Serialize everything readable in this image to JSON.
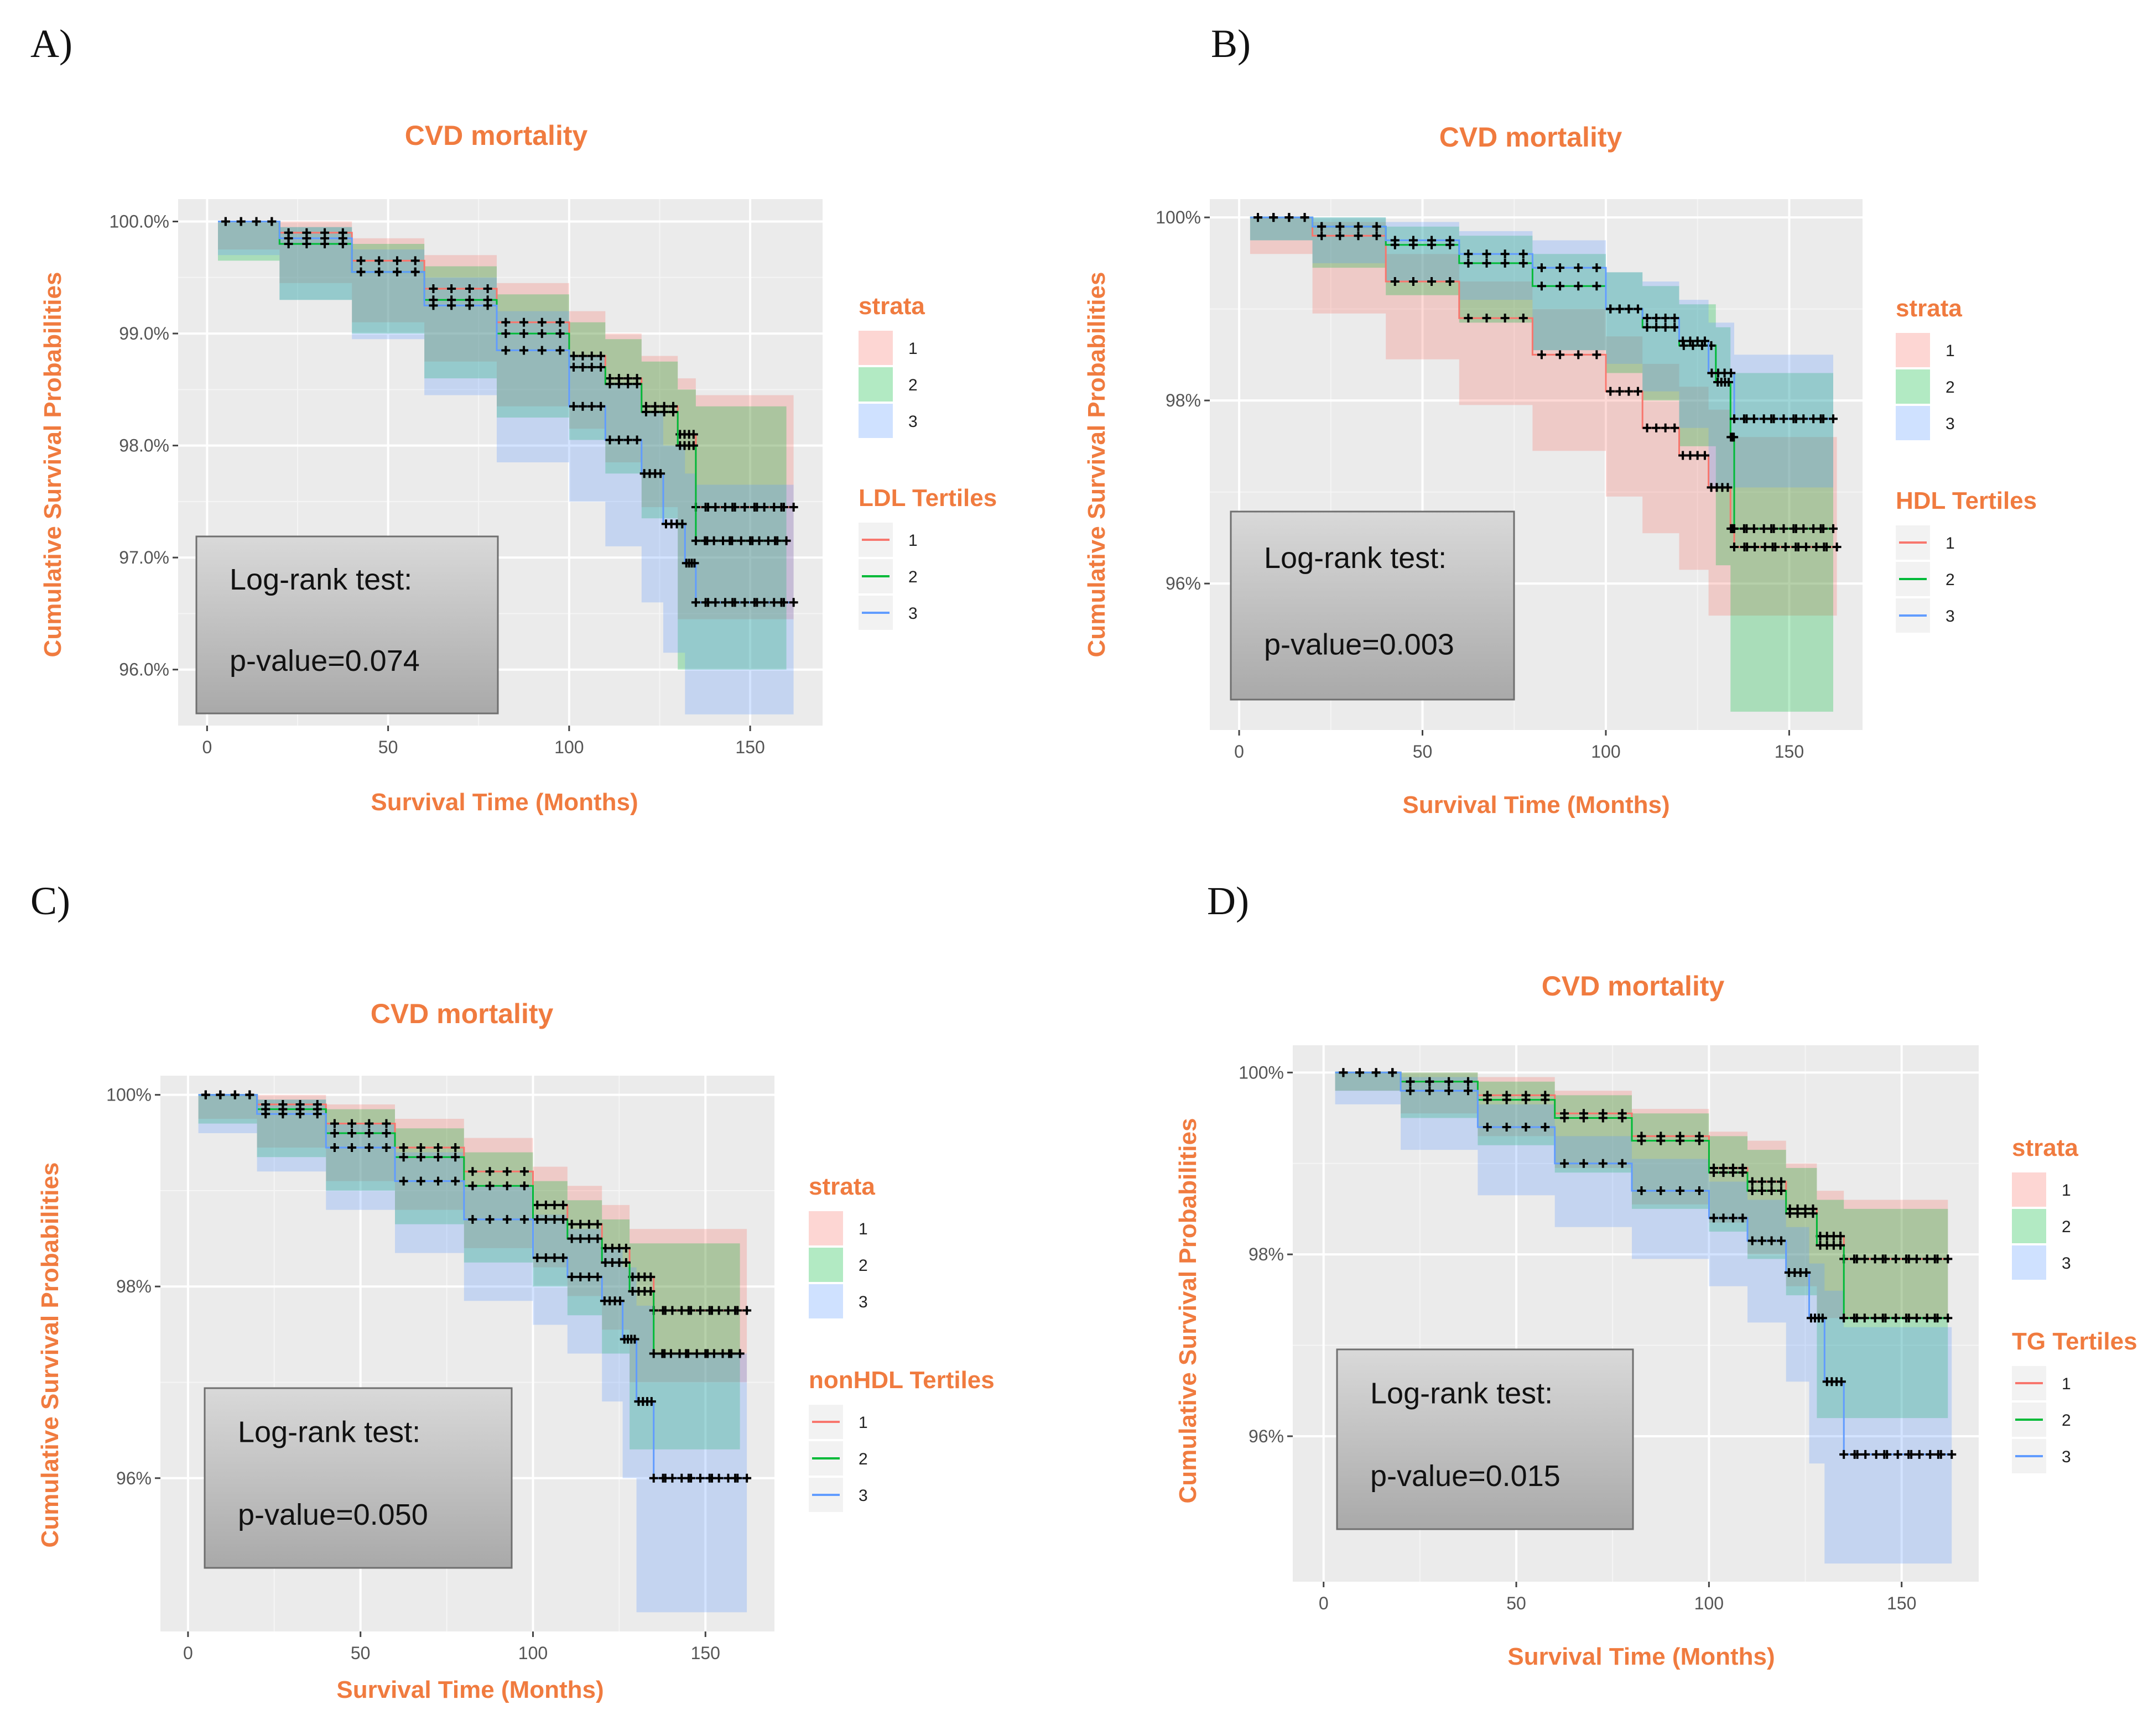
{
  "chart_data": [
    {
      "panel": "A)",
      "type": "line",
      "title": "CVD mortality",
      "xlabel": "Survival Time (Months)",
      "ylabel": "Cumulative Survival Probabilities",
      "xlim": [
        -8,
        170
      ],
      "ylim": [
        95.5,
        100.2
      ],
      "xticks": [
        0,
        50,
        100,
        150
      ],
      "yticks": [
        100,
        99,
        98,
        97,
        96
      ],
      "ytick_labels": [
        "100.0%",
        "99.0%",
        "98.0%",
        "97.0%",
        "96.0%"
      ],
      "grid": true,
      "legend_position": "right",
      "strata_title": "strata",
      "group_title": "LDL Tertiles",
      "legend_labels": [
        "1",
        "2",
        "3"
      ],
      "annotation": {
        "line1": "Log-rank test:",
        "line2": "p-value=0.074"
      },
      "series": [
        {
          "color": "#f8766d",
          "x": [
            3,
            20,
            40,
            60,
            80,
            100,
            110,
            120,
            130,
            135,
            162
          ],
          "y": [
            100,
            99.9,
            99.65,
            99.4,
            99.1,
            98.8,
            98.6,
            98.35,
            98.1,
            97.45,
            97.45
          ],
          "upper": [
            100,
            100,
            99.85,
            99.7,
            99.45,
            99.2,
            99.0,
            98.8,
            98.6,
            98.45,
            98.45
          ],
          "lower": [
            100,
            99.75,
            99.45,
            99.1,
            98.75,
            98.35,
            98.15,
            97.85,
            97.45,
            96.45,
            96.45
          ]
        },
        {
          "color": "#00ba38",
          "x": [
            3,
            20,
            40,
            60,
            80,
            100,
            110,
            120,
            130,
            135,
            160
          ],
          "y": [
            100,
            99.8,
            99.55,
            99.3,
            99.0,
            98.7,
            98.55,
            98.3,
            98.0,
            97.15,
            97.15
          ],
          "upper": [
            100,
            99.95,
            99.8,
            99.6,
            99.35,
            99.1,
            98.95,
            98.75,
            98.5,
            98.35,
            98.35
          ],
          "lower": [
            100,
            99.65,
            99.3,
            99.0,
            98.6,
            98.25,
            98.05,
            97.75,
            97.35,
            96.0,
            96.0
          ]
        },
        {
          "color": "#619cff",
          "x": [
            3,
            20,
            40,
            60,
            80,
            100,
            110,
            120,
            126,
            132,
            135,
            162
          ],
          "y": [
            100,
            99.85,
            99.55,
            99.25,
            98.85,
            98.35,
            98.05,
            97.75,
            97.3,
            96.95,
            96.6,
            96.6
          ],
          "upper": [
            100,
            99.95,
            99.75,
            99.5,
            99.2,
            98.8,
            98.55,
            98.3,
            98.0,
            97.75,
            97.65,
            97.65
          ],
          "lower": [
            100,
            99.7,
            99.3,
            98.95,
            98.45,
            97.85,
            97.5,
            97.1,
            96.6,
            96.15,
            95.6,
            95.6
          ]
        }
      ]
    },
    {
      "panel": "B)",
      "type": "line",
      "title": "CVD mortality",
      "xlabel": "Survival Time (Months)",
      "ylabel": "Cumulative Survival Probabilities",
      "xlim": [
        -8,
        170
      ],
      "ylim": [
        94.4,
        100.2
      ],
      "xticks": [
        0,
        50,
        100,
        150
      ],
      "yticks": [
        100,
        98,
        96
      ],
      "ytick_labels": [
        "100%",
        "98%",
        "96%"
      ],
      "grid": true,
      "legend_position": "right",
      "strata_title": "strata",
      "group_title": "HDL Tertiles",
      "legend_labels": [
        "1",
        "2",
        "3"
      ],
      "annotation": {
        "line1": "Log-rank test:",
        "line2": "p-value=0.003"
      },
      "series": [
        {
          "color": "#f8766d",
          "x": [
            3,
            20,
            40,
            60,
            80,
            100,
            110,
            120,
            128,
            134,
            135,
            163
          ],
          "y": [
            100,
            99.8,
            99.3,
            98.9,
            98.5,
            98.1,
            97.7,
            97.4,
            97.05,
            96.6,
            96.4,
            96.4
          ],
          "upper": [
            100,
            99.95,
            99.6,
            99.3,
            99.0,
            98.7,
            98.4,
            98.15,
            97.9,
            97.6,
            97.6,
            97.6
          ],
          "lower": [
            100,
            99.6,
            98.95,
            98.45,
            97.95,
            97.45,
            96.95,
            96.55,
            96.15,
            95.65,
            95.65,
            95.65
          ]
        },
        {
          "color": "#00ba38",
          "x": [
            3,
            20,
            40,
            60,
            80,
            100,
            110,
            120,
            130,
            134,
            135,
            162
          ],
          "y": [
            100,
            99.9,
            99.7,
            99.5,
            99.25,
            99.0,
            98.8,
            98.6,
            98.2,
            97.6,
            96.6,
            96.6
          ],
          "upper": [
            100,
            100,
            99.9,
            99.8,
            99.6,
            99.4,
            99.25,
            99.05,
            98.8,
            98.3,
            98.3,
            98.3
          ],
          "lower": [
            100,
            99.75,
            99.45,
            99.15,
            98.85,
            98.55,
            98.3,
            98.0,
            97.5,
            96.2,
            94.6,
            94.6
          ]
        },
        {
          "color": "#619cff",
          "x": [
            3,
            20,
            40,
            60,
            80,
            100,
            110,
            120,
            128,
            135,
            162
          ],
          "y": [
            100,
            99.9,
            99.75,
            99.6,
            99.45,
            99.0,
            98.9,
            98.65,
            98.3,
            97.8,
            97.8
          ],
          "upper": [
            100,
            100,
            99.95,
            99.85,
            99.75,
            99.4,
            99.3,
            99.1,
            98.85,
            98.5,
            98.5
          ],
          "lower": [
            100,
            99.75,
            99.5,
            99.3,
            99.1,
            98.55,
            98.4,
            98.1,
            97.7,
            97.05,
            97.05
          ]
        }
      ]
    },
    {
      "panel": "C)",
      "type": "line",
      "title": "CVD mortality",
      "xlabel": "Survival Time (Months)",
      "ylabel": "Cumulative Survival Probabilities",
      "xlim": [
        -8,
        170
      ],
      "ylim": [
        94.4,
        100.2
      ],
      "xticks": [
        0,
        50,
        100,
        150
      ],
      "yticks": [
        100,
        98,
        96
      ],
      "ytick_labels": [
        "100%",
        "98%",
        "96%"
      ],
      "grid": true,
      "legend_position": "right",
      "strata_title": "strata",
      "group_title": "nonHDL Tertiles",
      "legend_labels": [
        "1",
        "2",
        "3"
      ],
      "annotation": {
        "line1": "Log-rank test:",
        "line2": "p-value=0.050"
      },
      "series": [
        {
          "color": "#f8766d",
          "x": [
            3,
            20,
            40,
            60,
            80,
            100,
            110,
            120,
            128,
            135,
            162
          ],
          "y": [
            100,
            99.9,
            99.7,
            99.45,
            99.2,
            98.85,
            98.65,
            98.4,
            98.1,
            97.75,
            97.75
          ],
          "upper": [
            100,
            100,
            99.9,
            99.75,
            99.55,
            99.25,
            99.05,
            98.85,
            98.6,
            98.6,
            98.6
          ],
          "lower": [
            100,
            99.75,
            99.45,
            99.1,
            98.8,
            98.4,
            98.2,
            97.9,
            97.55,
            97.0,
            97.0
          ]
        },
        {
          "color": "#00ba38",
          "x": [
            3,
            20,
            40,
            60,
            80,
            100,
            110,
            120,
            128,
            135,
            160
          ],
          "y": [
            100,
            99.85,
            99.6,
            99.35,
            99.05,
            98.7,
            98.5,
            98.25,
            97.95,
            97.3,
            97.3
          ],
          "upper": [
            100,
            99.95,
            99.85,
            99.65,
            99.4,
            99.1,
            98.9,
            98.7,
            98.45,
            98.45,
            98.45
          ],
          "lower": [
            100,
            99.7,
            99.35,
            99.0,
            98.65,
            98.25,
            98.0,
            97.7,
            97.3,
            96.3,
            96.3
          ]
        },
        {
          "color": "#619cff",
          "x": [
            3,
            20,
            40,
            60,
            80,
            100,
            110,
            120,
            126,
            130,
            135,
            162
          ],
          "y": [
            100,
            99.8,
            99.45,
            99.1,
            98.7,
            98.3,
            98.1,
            97.85,
            97.45,
            96.8,
            96.0,
            96.0
          ],
          "upper": [
            100,
            99.95,
            99.7,
            99.4,
            99.05,
            98.75,
            98.6,
            98.4,
            98.2,
            97.8,
            97.3,
            97.3
          ],
          "lower": [
            100,
            99.6,
            99.2,
            98.8,
            98.35,
            97.85,
            97.6,
            97.3,
            96.8,
            96.0,
            94.6,
            94.6
          ]
        }
      ]
    },
    {
      "panel": "D)",
      "type": "line",
      "title": "CVD mortality",
      "xlabel": "Survival Time (Months)",
      "ylabel": "Cumulative Survival Probabilities",
      "xlim": [
        -8,
        170
      ],
      "ylim": [
        94.4,
        100.3
      ],
      "xticks": [
        0,
        50,
        100,
        150
      ],
      "yticks": [
        100,
        98,
        96
      ],
      "ytick_labels": [
        "100%",
        "98%",
        "96%"
      ],
      "grid": true,
      "legend_position": "right",
      "strata_title": "strata",
      "group_title": "TG Tertiles",
      "legend_labels": [
        "1",
        "2",
        "3"
      ],
      "annotation": {
        "line1": "Log-rank test:",
        "line2": "p-value=0.015"
      },
      "series": [
        {
          "color": "#f8766d",
          "x": [
            3,
            20,
            40,
            60,
            80,
            100,
            110,
            120,
            128,
            135,
            162
          ],
          "y": [
            100,
            99.9,
            99.75,
            99.55,
            99.3,
            98.95,
            98.8,
            98.5,
            98.2,
            97.95,
            97.95
          ],
          "upper": [
            100,
            100,
            99.95,
            99.8,
            99.6,
            99.35,
            99.25,
            99.0,
            98.7,
            98.6,
            98.6
          ],
          "lower": [
            100,
            99.8,
            99.55,
            99.3,
            98.95,
            98.55,
            98.35,
            98.0,
            97.65,
            97.3,
            97.3
          ]
        },
        {
          "color": "#00ba38",
          "x": [
            3,
            20,
            40,
            60,
            80,
            100,
            110,
            120,
            128,
            135,
            162
          ],
          "y": [
            100,
            99.9,
            99.7,
            99.5,
            99.25,
            98.9,
            98.7,
            98.45,
            98.1,
            97.3,
            97.3
          ],
          "upper": [
            100,
            100,
            99.9,
            99.75,
            99.55,
            99.3,
            99.15,
            98.95,
            98.6,
            98.5,
            98.5
          ],
          "lower": [
            100,
            99.8,
            99.5,
            99.2,
            98.9,
            98.5,
            98.25,
            97.95,
            97.55,
            96.2,
            96.2
          ]
        },
        {
          "color": "#619cff",
          "x": [
            3,
            20,
            40,
            60,
            80,
            100,
            110,
            120,
            126,
            130,
            135,
            163
          ],
          "y": [
            100,
            99.8,
            99.4,
            99.0,
            98.7,
            98.4,
            98.15,
            97.8,
            97.3,
            96.6,
            95.8,
            95.8
          ],
          "upper": [
            100,
            99.95,
            99.65,
            99.3,
            99.05,
            98.8,
            98.6,
            98.3,
            97.9,
            97.6,
            97.2,
            97.2
          ],
          "lower": [
            100,
            99.65,
            99.15,
            98.65,
            98.3,
            97.95,
            97.65,
            97.25,
            96.6,
            95.7,
            94.6,
            94.6
          ]
        }
      ]
    }
  ]
}
